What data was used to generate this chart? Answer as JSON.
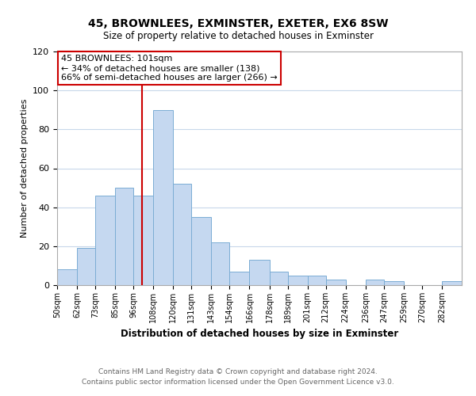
{
  "title": "45, BROWNLEES, EXMINSTER, EXETER, EX6 8SW",
  "subtitle": "Size of property relative to detached houses in Exminster",
  "xlabel": "Distribution of detached houses by size in Exminster",
  "ylabel": "Number of detached properties",
  "bin_labels": [
    "50sqm",
    "62sqm",
    "73sqm",
    "85sqm",
    "96sqm",
    "108sqm",
    "120sqm",
    "131sqm",
    "143sqm",
    "154sqm",
    "166sqm",
    "178sqm",
    "189sqm",
    "201sqm",
    "212sqm",
    "224sqm",
    "236sqm",
    "247sqm",
    "259sqm",
    "270sqm",
    "282sqm"
  ],
  "bin_edges": [
    50,
    62,
    73,
    85,
    96,
    108,
    120,
    131,
    143,
    154,
    166,
    178,
    189,
    201,
    212,
    224,
    236,
    247,
    259,
    270,
    282,
    294
  ],
  "bar_heights": [
    8,
    19,
    46,
    50,
    46,
    90,
    52,
    35,
    22,
    7,
    13,
    7,
    5,
    5,
    3,
    0,
    3,
    2,
    0,
    0,
    2
  ],
  "bar_color": "#c5d8f0",
  "bar_edge_color": "#7badd4",
  "property_size": 101,
  "red_line_color": "#cc0000",
  "annotation_line1": "45 BROWNLEES: 101sqm",
  "annotation_line2": "← 34% of detached houses are smaller (138)",
  "annotation_line3": "66% of semi-detached houses are larger (266) →",
  "annotation_box_color": "#ffffff",
  "annotation_box_edge": "#cc0000",
  "ylim": [
    0,
    120
  ],
  "yticks": [
    0,
    20,
    40,
    60,
    80,
    100,
    120
  ],
  "footnote1": "Contains HM Land Registry data © Crown copyright and database right 2024.",
  "footnote2": "Contains public sector information licensed under the Open Government Licence v3.0.",
  "background_color": "#ffffff",
  "grid_color": "#c8d8ea"
}
